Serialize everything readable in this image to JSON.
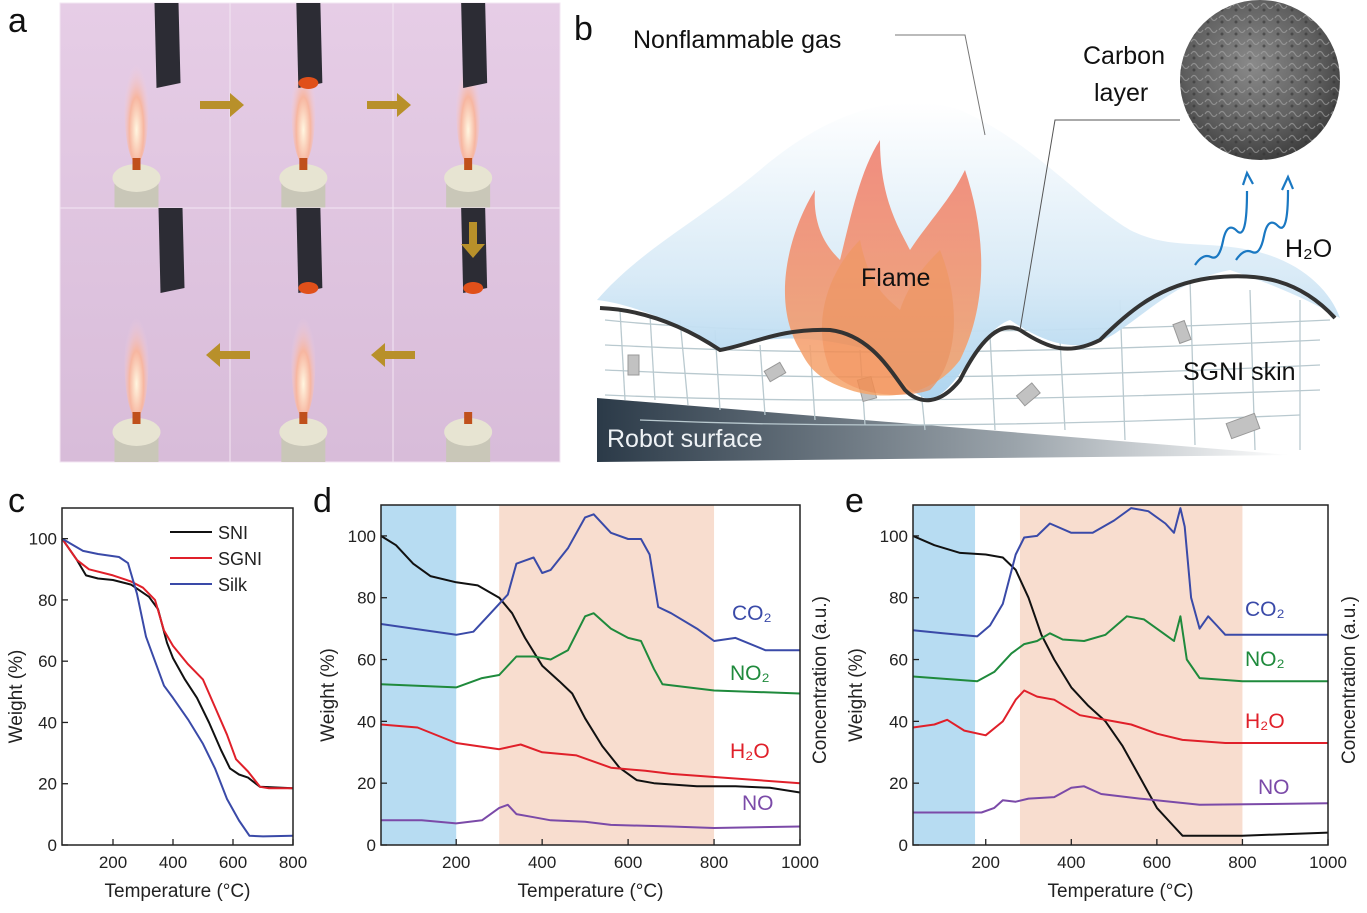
{
  "panel_labels": {
    "a": "a",
    "b": "b",
    "c": "c",
    "d": "d",
    "e": "e"
  },
  "diagram_b": {
    "nonflammable_gas": "Nonflammable gas",
    "carbon_layer_line1": "Carbon",
    "carbon_layer_line2": "layer",
    "flame": "Flame",
    "h2o": "H₂O",
    "skin": "SGNI skin",
    "robot_surface": "Robot surface"
  },
  "colors": {
    "sni": "#111111",
    "sgni": "#e0202a",
    "silk": "#3a4aa8",
    "co2": "#3a4aa8",
    "no2": "#1f8a3c",
    "h2o": "#e0202a",
    "no": "#7b4aa8",
    "weight": "#111111",
    "shade_low": "#b7dcf2",
    "shade_high": "#f8ddcf",
    "arrow": "#b8902a"
  },
  "chart_data": [
    {
      "panel": "c",
      "type": "line",
      "xlabel": "Temperature (°C)",
      "ylabel": "Weight (%)",
      "xlim": [
        30,
        800
      ],
      "ylim": [
        0,
        110
      ],
      "xticks": [
        200,
        400,
        600,
        800
      ],
      "yticks": [
        0,
        20,
        40,
        60,
        80,
        100
      ],
      "legend": "top-right",
      "grid": false,
      "series": [
        {
          "name": "SNI",
          "color_key": "sni",
          "points": [
            [
              30,
              100
            ],
            [
              80,
              93
            ],
            [
              110,
              88
            ],
            [
              150,
              87
            ],
            [
              200,
              86.5
            ],
            [
              260,
              85
            ],
            [
              320,
              81
            ],
            [
              350,
              77
            ],
            [
              380,
              66
            ],
            [
              400,
              61
            ],
            [
              440,
              54
            ],
            [
              480,
              48
            ],
            [
              520,
              40
            ],
            [
              560,
              31
            ],
            [
              590,
              25
            ],
            [
              620,
              23
            ],
            [
              650,
              22
            ],
            [
              690,
              19
            ],
            [
              800,
              18.5
            ]
          ]
        },
        {
          "name": "SGNI",
          "color_key": "sgni",
          "points": [
            [
              30,
              100
            ],
            [
              80,
              93
            ],
            [
              120,
              90
            ],
            [
              200,
              88
            ],
            [
              260,
              86
            ],
            [
              300,
              84
            ],
            [
              340,
              80
            ],
            [
              370,
              70
            ],
            [
              400,
              65
            ],
            [
              450,
              59
            ],
            [
              500,
              54
            ],
            [
              540,
              45
            ],
            [
              580,
              36
            ],
            [
              610,
              28
            ],
            [
              650,
              24
            ],
            [
              690,
              19
            ],
            [
              720,
              18.5
            ],
            [
              800,
              18.5
            ]
          ]
        },
        {
          "name": "Silk",
          "color_key": "silk",
          "points": [
            [
              30,
              100
            ],
            [
              100,
              96
            ],
            [
              150,
              95
            ],
            [
              220,
              94
            ],
            [
              250,
              92
            ],
            [
              280,
              82
            ],
            [
              310,
              68
            ],
            [
              340,
              60
            ],
            [
              370,
              52
            ],
            [
              400,
              48
            ],
            [
              450,
              41
            ],
            [
              500,
              33
            ],
            [
              540,
              25
            ],
            [
              580,
              15
            ],
            [
              620,
              8
            ],
            [
              655,
              3
            ],
            [
              700,
              2.8
            ],
            [
              800,
              3
            ]
          ]
        }
      ]
    },
    {
      "panel": "d",
      "type": "line",
      "xlabel": "Temperature (°C)",
      "ylabel": "Weight (%)",
      "ylabel_right": "Concentration (a.u.)",
      "xlim": [
        25,
        1000
      ],
      "ylim": [
        0,
        110
      ],
      "xticks": [
        200,
        400,
        600,
        800,
        1000
      ],
      "yticks": [
        0,
        20,
        40,
        60,
        80,
        100
      ],
      "grid": false,
      "shaded_ranges": [
        {
          "range": [
            25,
            200
          ],
          "color_key": "shade_low"
        },
        {
          "range": [
            300,
            800
          ],
          "color_key": "shade_high"
        }
      ],
      "series": [
        {
          "color_key": "weight",
          "points": [
            [
              25,
              100
            ],
            [
              60,
              97
            ],
            [
              100,
              91
            ],
            [
              140,
              87
            ],
            [
              200,
              85
            ],
            [
              250,
              84
            ],
            [
              300,
              80
            ],
            [
              330,
              75
            ],
            [
              360,
              67
            ],
            [
              400,
              58
            ],
            [
              440,
              53
            ],
            [
              470,
              49
            ],
            [
              500,
              41
            ],
            [
              540,
              32
            ],
            [
              580,
              25
            ],
            [
              620,
              21
            ],
            [
              660,
              20
            ],
            [
              760,
              19
            ],
            [
              850,
              19
            ],
            [
              930,
              18.5
            ],
            [
              1000,
              17
            ]
          ]
        },
        {
          "name": "CO₂",
          "color_key": "co2",
          "points": [
            [
              25,
              71.5
            ],
            [
              100,
              70
            ],
            [
              200,
              68
            ],
            [
              240,
              69
            ],
            [
              280,
              75
            ],
            [
              320,
              81
            ],
            [
              340,
              91
            ],
            [
              360,
              92
            ],
            [
              380,
              93
            ],
            [
              400,
              88
            ],
            [
              420,
              89
            ],
            [
              460,
              96
            ],
            [
              500,
              106
            ],
            [
              520,
              107
            ],
            [
              560,
              101
            ],
            [
              600,
              99
            ],
            [
              630,
              99
            ],
            [
              650,
              94
            ],
            [
              670,
              77
            ],
            [
              700,
              75
            ],
            [
              760,
              70
            ],
            [
              800,
              66
            ],
            [
              850,
              67
            ],
            [
              920,
              63
            ],
            [
              1000,
              63
            ]
          ]
        },
        {
          "name": "NO₂",
          "color_key": "no2",
          "points": [
            [
              25,
              52
            ],
            [
              200,
              51
            ],
            [
              260,
              54
            ],
            [
              300,
              55
            ],
            [
              340,
              61
            ],
            [
              380,
              61
            ],
            [
              420,
              60
            ],
            [
              460,
              63
            ],
            [
              500,
              74
            ],
            [
              520,
              75
            ],
            [
              560,
              70
            ],
            [
              600,
              67
            ],
            [
              630,
              66
            ],
            [
              660,
              57
            ],
            [
              680,
              52
            ],
            [
              800,
              50
            ],
            [
              1000,
              49
            ]
          ]
        },
        {
          "name": "H₂O",
          "color_key": "h2o",
          "points": [
            [
              25,
              39
            ],
            [
              110,
              38
            ],
            [
              200,
              33
            ],
            [
              300,
              31
            ],
            [
              350,
              32.5
            ],
            [
              400,
              30
            ],
            [
              480,
              29
            ],
            [
              560,
              25
            ],
            [
              640,
              24
            ],
            [
              700,
              23
            ],
            [
              800,
              22
            ],
            [
              1000,
              20
            ]
          ]
        },
        {
          "name": "NO",
          "color_key": "no",
          "points": [
            [
              25,
              8
            ],
            [
              120,
              8
            ],
            [
              200,
              7
            ],
            [
              260,
              8
            ],
            [
              300,
              12
            ],
            [
              320,
              13
            ],
            [
              340,
              10
            ],
            [
              380,
              9
            ],
            [
              420,
              8
            ],
            [
              500,
              7.5
            ],
            [
              560,
              6.5
            ],
            [
              700,
              6
            ],
            [
              800,
              5.5
            ],
            [
              1000,
              6
            ]
          ]
        }
      ]
    },
    {
      "panel": "e",
      "type": "line",
      "xlabel": "Temperature (°C)",
      "ylabel": "Weight (%)",
      "ylabel_right": "Concentration (a.u.)",
      "xlim": [
        30,
        1000
      ],
      "ylim": [
        0,
        110
      ],
      "xticks": [
        200,
        400,
        600,
        800,
        1000
      ],
      "yticks": [
        0,
        20,
        40,
        60,
        80,
        100
      ],
      "grid": false,
      "shaded_ranges": [
        {
          "range": [
            30,
            175
          ],
          "color_key": "shade_low"
        },
        {
          "range": [
            280,
            800
          ],
          "color_key": "shade_high"
        }
      ],
      "series": [
        {
          "color_key": "weight",
          "points": [
            [
              30,
              100
            ],
            [
              80,
              97
            ],
            [
              140,
              94.5
            ],
            [
              200,
              94
            ],
            [
              240,
              93
            ],
            [
              270,
              89
            ],
            [
              300,
              80
            ],
            [
              330,
              68
            ],
            [
              360,
              60
            ],
            [
              400,
              51
            ],
            [
              440,
              45
            ],
            [
              480,
              40
            ],
            [
              520,
              32
            ],
            [
              560,
              22
            ],
            [
              600,
              12
            ],
            [
              640,
              6
            ],
            [
              660,
              3
            ],
            [
              700,
              3
            ],
            [
              800,
              3
            ],
            [
              1000,
              4
            ]
          ]
        },
        {
          "name": "CO₂",
          "color_key": "co2",
          "points": [
            [
              30,
              69.5
            ],
            [
              100,
              68.5
            ],
            [
              180,
              67.5
            ],
            [
              210,
              71
            ],
            [
              240,
              78
            ],
            [
              270,
              94
            ],
            [
              290,
              99.5
            ],
            [
              320,
              100
            ],
            [
              350,
              104
            ],
            [
              400,
              101
            ],
            [
              450,
              101
            ],
            [
              500,
              105
            ],
            [
              540,
              109
            ],
            [
              580,
              108
            ],
            [
              620,
              104
            ],
            [
              640,
              101
            ],
            [
              655,
              109
            ],
            [
              665,
              103
            ],
            [
              680,
              80
            ],
            [
              700,
              70
            ],
            [
              720,
              74
            ],
            [
              740,
              71
            ],
            [
              760,
              68
            ],
            [
              1000,
              68
            ]
          ]
        },
        {
          "name": "NO₂",
          "color_key": "no2",
          "points": [
            [
              30,
              54.5
            ],
            [
              180,
              53
            ],
            [
              220,
              56
            ],
            [
              260,
              62
            ],
            [
              290,
              65
            ],
            [
              320,
              66
            ],
            [
              350,
              68.5
            ],
            [
              380,
              66.5
            ],
            [
              430,
              66
            ],
            [
              480,
              68
            ],
            [
              530,
              74
            ],
            [
              570,
              73
            ],
            [
              610,
              69
            ],
            [
              640,
              66
            ],
            [
              655,
              74
            ],
            [
              670,
              60
            ],
            [
              700,
              54
            ],
            [
              800,
              53
            ],
            [
              1000,
              53
            ]
          ]
        },
        {
          "name": "H₂O",
          "color_key": "h2o",
          "points": [
            [
              30,
              38
            ],
            [
              80,
              39
            ],
            [
              110,
              40.5
            ],
            [
              150,
              37
            ],
            [
              200,
              35.5
            ],
            [
              240,
              40
            ],
            [
              270,
              47
            ],
            [
              290,
              50
            ],
            [
              320,
              48
            ],
            [
              360,
              47
            ],
            [
              420,
              42
            ],
            [
              500,
              40
            ],
            [
              540,
              39
            ],
            [
              600,
              36
            ],
            [
              660,
              34
            ],
            [
              760,
              33
            ],
            [
              1000,
              33
            ]
          ]
        },
        {
          "name": "NO",
          "color_key": "no",
          "points": [
            [
              30,
              10.5
            ],
            [
              190,
              10.5
            ],
            [
              220,
              12
            ],
            [
              240,
              14.5
            ],
            [
              270,
              14
            ],
            [
              300,
              15
            ],
            [
              360,
              15.5
            ],
            [
              400,
              18.5
            ],
            [
              430,
              19
            ],
            [
              470,
              16.5
            ],
            [
              560,
              15
            ],
            [
              700,
              13
            ],
            [
              1000,
              13.5
            ]
          ]
        }
      ]
    }
  ]
}
